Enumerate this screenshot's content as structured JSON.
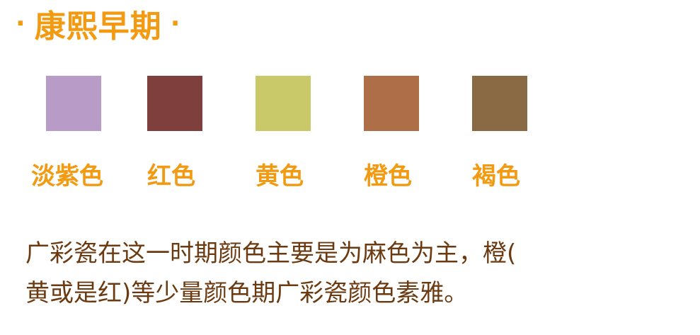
{
  "title": {
    "dot_left": "·",
    "text": "康熙早期",
    "dot_right": "·"
  },
  "swatches": [
    {
      "label": "淡紫色",
      "color": "#b99bc8"
    },
    {
      "label": "红色",
      "color": "#7e3f3d"
    },
    {
      "label": "黄色",
      "color": "#c9c96a"
    },
    {
      "label": "橙色",
      "color": "#ae6e48"
    },
    {
      "label": "褐色",
      "color": "#8a6a44"
    }
  ],
  "description": {
    "line1": "广彩瓷在这一时期颜色主要是为麻色为主，橙(",
    "line2": "黄或是红)等少量颜色期广彩瓷颜色素雅。"
  },
  "colors": {
    "accent": "#f29a12",
    "text": "#6b3a10",
    "background": "#ffffff"
  }
}
